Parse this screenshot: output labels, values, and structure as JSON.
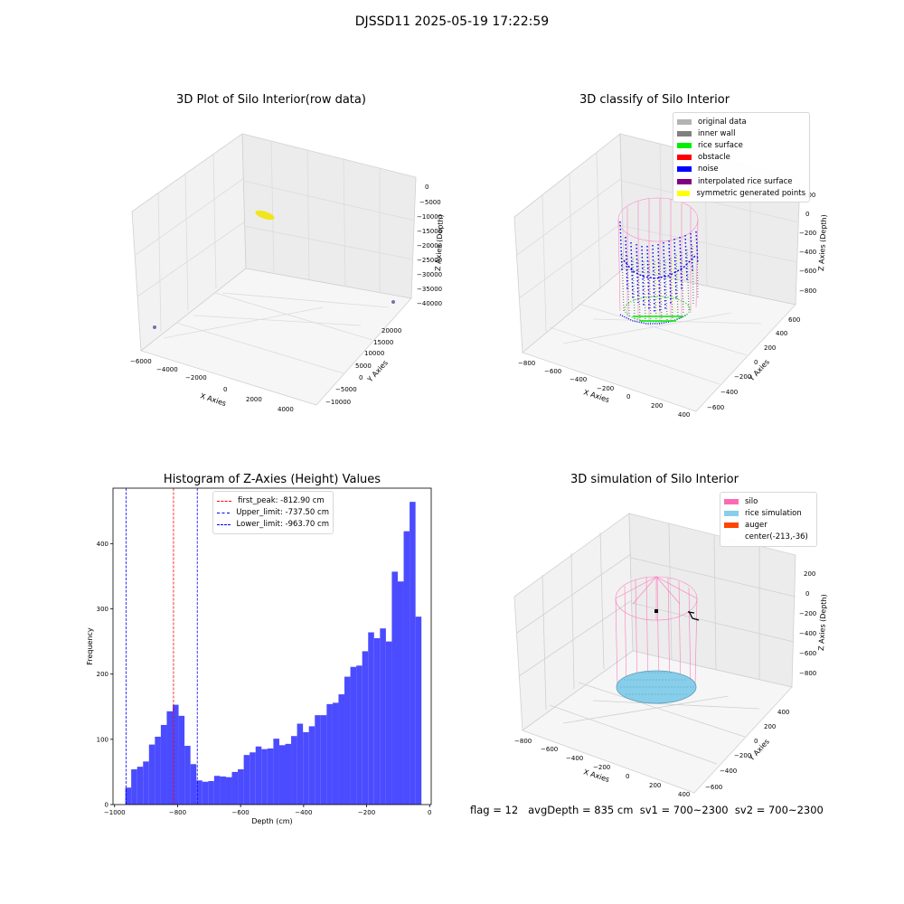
{
  "suptitle": "DJSSD11 2025-05-19 17:22:59",
  "status_line": "flag = 12   avgDepth = 835 cm  sv1 = 700~2300  sv2 = 700~2300",
  "chart_data": [
    {
      "type": "scatter",
      "title": "3D Plot of Silo Interior(row data)",
      "xlabel": "X Axies",
      "ylabel": "Y Axies",
      "zlabel": "Z Axies (Depth)",
      "x_ticks": [
        "−6000",
        "−4000",
        "−2000",
        "0",
        "2000",
        "4000"
      ],
      "y_ticks": [
        "−10000",
        "−5000",
        "0",
        "5000",
        "10000",
        "15000",
        "20000"
      ],
      "z_ticks": [
        "0",
        "−5000",
        "−10000",
        "−15000",
        "−20000",
        "−25000",
        "−30000",
        "−35000",
        "−40000"
      ],
      "series": [
        {
          "color": "#f2e51d",
          "description": "dense cluster near x≈-1000, y≈5000, z≈-8000"
        },
        {
          "color": "#7a6ea8",
          "description": "isolated outlier points"
        }
      ]
    },
    {
      "type": "scatter",
      "title": "3D classify of Silo Interior",
      "xlabel": "X Axies",
      "ylabel": "Y Axies",
      "zlabel": "Z Axies (Depth)",
      "x_ticks": [
        "−800",
        "−600",
        "−400",
        "−200",
        "0",
        "200",
        "400"
      ],
      "y_ticks": [
        "−600",
        "−400",
        "−200",
        "0",
        "200",
        "400",
        "600"
      ],
      "z_ticks": [
        "200",
        "0",
        "−200",
        "−400",
        "−600",
        "−800"
      ],
      "legend": [
        {
          "label": "original data",
          "color": "#b3b3b3"
        },
        {
          "label": "inner wall",
          "color": "#808080"
        },
        {
          "label": "rice surface",
          "color": "#00ee00"
        },
        {
          "label": "obstacle",
          "color": "#ff0000"
        },
        {
          "label": "noise",
          "color": "#0000ff"
        },
        {
          "label": "interpolated rice surface",
          "color": "#800080"
        },
        {
          "label": "symmetric generated points",
          "color": "#ffff00"
        }
      ]
    },
    {
      "type": "bar",
      "title": "Histogram of Z-Axies (Height) Values",
      "xlabel": "Depth (cm)",
      "ylabel": "Frequency",
      "xlim": [
        -1005,
        5
      ],
      "ylim": [
        0,
        485
      ],
      "x_ticks": [
        -1000,
        -800,
        -600,
        -400,
        -200,
        0
      ],
      "y_ticks": [
        0,
        100,
        200,
        300,
        400
      ],
      "bar_color": "#4b4bff",
      "bin_start": -966,
      "bin_width": 18.8,
      "values": [
        26,
        54,
        58,
        66,
        92,
        104,
        122,
        143,
        153,
        136,
        90,
        62,
        37,
        35,
        36,
        44,
        43,
        42,
        50,
        54,
        76,
        80,
        89,
        85,
        86,
        101,
        91,
        93,
        105,
        124,
        111,
        120,
        137,
        137,
        154,
        156,
        169,
        196,
        211,
        213,
        235,
        264,
        255,
        270,
        250,
        357,
        342,
        419,
        464,
        288
      ],
      "vlines": [
        {
          "label": "first_peak: -812.90 cm",
          "x": -812.9,
          "color": "#ff0000"
        },
        {
          "label": "Upper_limit: -737.50 cm",
          "x": -737.5,
          "color": "#0000ff"
        },
        {
          "label": "Lower_limit: -963.70 cm",
          "x": -963.7,
          "color": "#0000ff"
        }
      ]
    },
    {
      "type": "scatter",
      "title": "3D simulation of Silo Interior",
      "xlabel": "X Axies",
      "ylabel": "Y Axies",
      "zlabel": "Z Axies (Depth)",
      "x_ticks": [
        "−800",
        "−600",
        "−400",
        "−200",
        "0",
        "200",
        "400"
      ],
      "y_ticks": [
        "−600",
        "−400",
        "−200",
        "0",
        "200",
        "400"
      ],
      "z_ticks": [
        "200",
        "0",
        "−200",
        "−400",
        "−600",
        "−800"
      ],
      "legend": [
        {
          "label": "silo",
          "color": "#ff69b4"
        },
        {
          "label": "rice simulation",
          "color": "#87ceeb"
        },
        {
          "label": "auger",
          "color": "#ff4500"
        },
        {
          "label": "center(-213,-36)",
          "color": ""
        }
      ]
    }
  ]
}
